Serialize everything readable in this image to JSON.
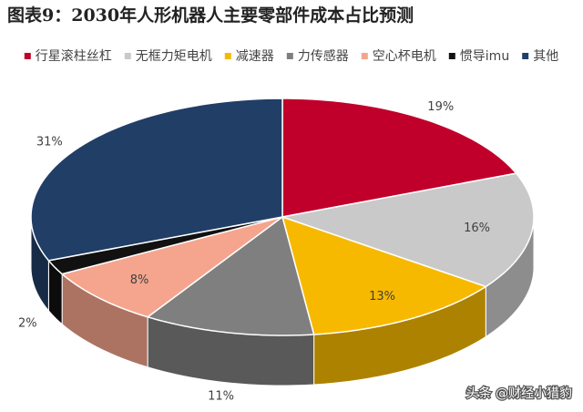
{
  "chart_data": {
    "type": "pie3d",
    "title": "图表9：2030年人形机器人主要零部件成本占比预测",
    "categories": [
      "行星滚柱丝杠",
      "无框力矩电机",
      "减速器",
      "力传感器",
      "空心杯电机",
      "惯导imu",
      "其他"
    ],
    "values": [
      19,
      16,
      13,
      11,
      8,
      2,
      31
    ],
    "value_labels": [
      "19%",
      "16%",
      "13%",
      "11%",
      "8%",
      "2%",
      "31%"
    ],
    "colors": [
      "#c0002b",
      "#c9c9c9",
      "#f7b900",
      "#7f7f7f",
      "#f5a58d",
      "#111111",
      "#213e66"
    ],
    "legend": "top"
  },
  "watermark": "头条 @财经小猎豹"
}
